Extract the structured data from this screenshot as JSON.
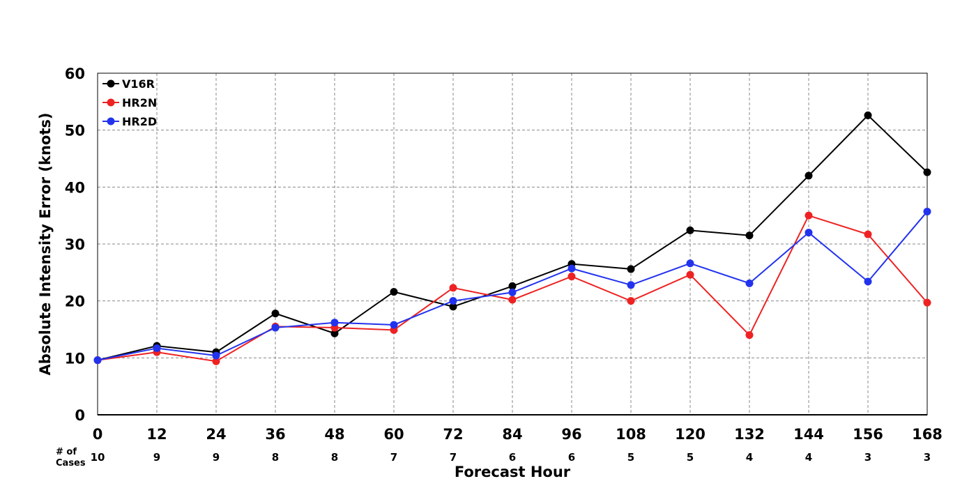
{
  "chart_data": {
    "type": "line",
    "title": "",
    "xlabel": "Forecast Hour",
    "ylabel": "Absolute Intensity Error (knots)",
    "x": [
      0,
      12,
      24,
      36,
      48,
      60,
      72,
      84,
      96,
      108,
      120,
      132,
      144,
      156,
      168
    ],
    "xlim": [
      0,
      168
    ],
    "ylim": [
      0,
      60
    ],
    "yticks": [
      0,
      10,
      20,
      30,
      40,
      50,
      60
    ],
    "grid": true,
    "legend_position": "top-left",
    "cases_label": "# of Cases",
    "cases": [
      10,
      9,
      9,
      8,
      8,
      7,
      7,
      6,
      6,
      5,
      5,
      4,
      4,
      3,
      3
    ],
    "series": [
      {
        "name": "V16R",
        "color": "#000000",
        "values": [
          9.6,
          12.1,
          11.0,
          17.8,
          14.3,
          21.6,
          19.0,
          22.6,
          26.5,
          25.6,
          32.4,
          31.5,
          42.0,
          52.6,
          42.6
        ]
      },
      {
        "name": "HR2N",
        "color": "#ee2222",
        "values": [
          9.6,
          11.0,
          9.4,
          15.5,
          15.3,
          14.9,
          22.3,
          20.2,
          24.3,
          20.0,
          24.6,
          14.0,
          35.0,
          31.7,
          19.7
        ]
      },
      {
        "name": "HR2D",
        "color": "#2233ee",
        "values": [
          9.6,
          11.7,
          10.4,
          15.3,
          16.2,
          15.8,
          20.0,
          21.5,
          25.7,
          22.8,
          26.6,
          23.1,
          32.0,
          23.4,
          35.7
        ]
      }
    ]
  }
}
